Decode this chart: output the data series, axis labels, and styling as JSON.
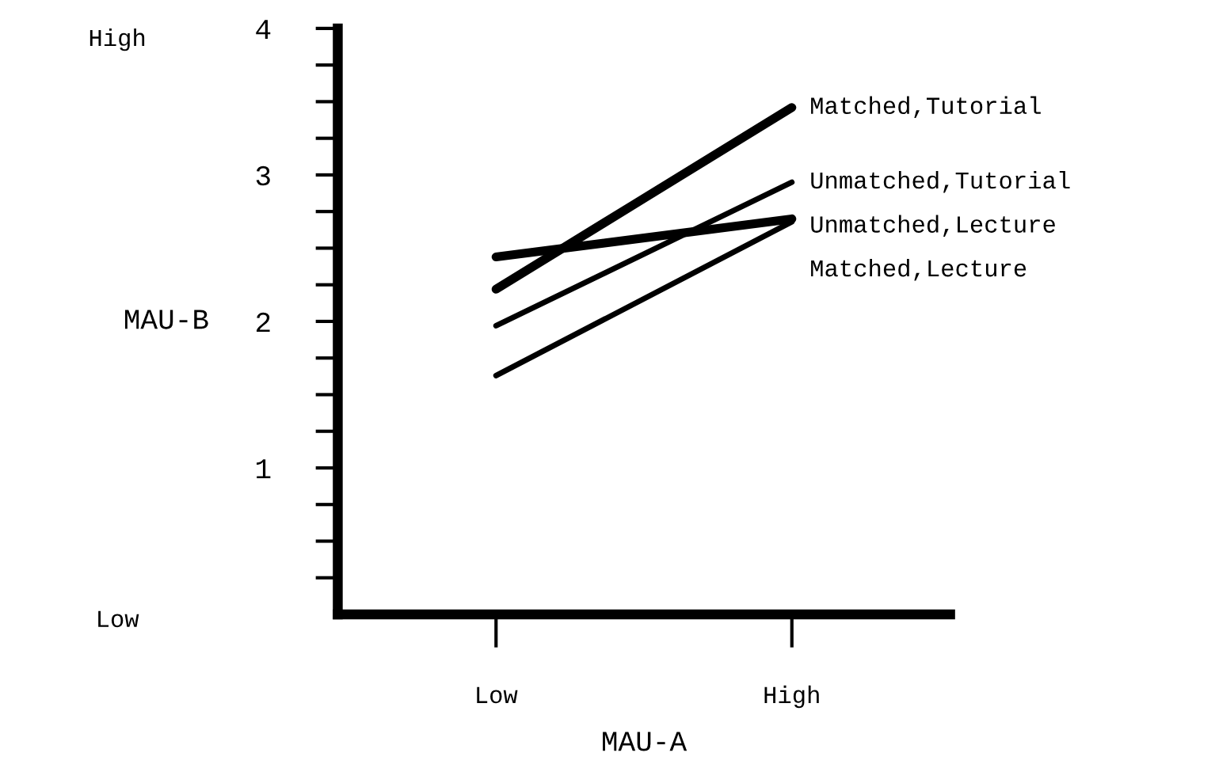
{
  "chart_data": {
    "type": "line",
    "xlabel": "MAU-A",
    "ylabel": "MAU-B",
    "categories": [
      "Low",
      "High"
    ],
    "series": [
      {
        "name": "Matched,Tutorial",
        "color": "#000000",
        "values": [
          2.22,
          3.46
        ]
      },
      {
        "name": "Unmatched,Tutorial",
        "color": "#000000",
        "values": [
          1.97,
          2.95
        ]
      },
      {
        "name": "Unmatched,Lecture",
        "color": "#000000",
        "values": [
          2.44,
          2.7
        ]
      },
      {
        "name": "Matched,Lecture",
        "color": "#000000",
        "values": [
          1.63,
          2.68
        ]
      }
    ],
    "ylim": [
      0,
      4
    ],
    "yticks": [
      {
        "value": 0.25,
        "label": null
      },
      {
        "value": 0.5,
        "label": null
      },
      {
        "value": 0.75,
        "label": null
      },
      1,
      {
        "value": 1.25,
        "label": null
      },
      {
        "value": 1.5,
        "label": null
      },
      {
        "value": 1.75,
        "label": null
      },
      2,
      {
        "value": 2.25,
        "label": null
      },
      {
        "value": 2.5,
        "label": null
      },
      {
        "value": 2.75,
        "label": null
      },
      3,
      {
        "value": 3.25,
        "label": null
      },
      {
        "value": 3.5,
        "label": null
      },
      {
        "value": 3.75,
        "label": null
      },
      4
    ],
    "annotations": [
      "High",
      "Low"
    ]
  }
}
